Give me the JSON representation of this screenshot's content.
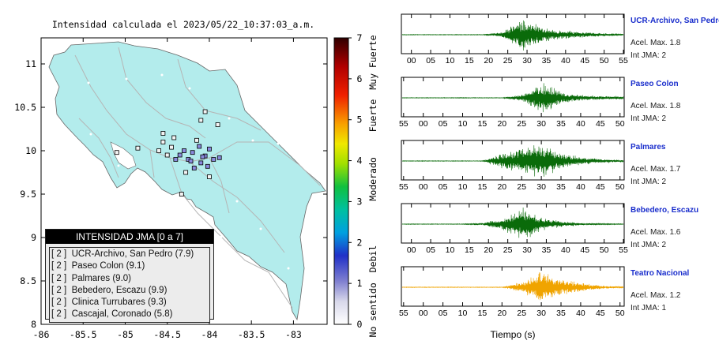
{
  "map": {
    "title": "Intensidad calculada el 2023/05/22_10:37:03_a.m.",
    "xticks": [
      "-86",
      "-85.5",
      "-85",
      "-84.5",
      "-84",
      "-83.5",
      "-83"
    ],
    "yticks": [
      "11",
      "10.5",
      "10",
      "9.5",
      "9",
      "8.5",
      "8"
    ],
    "colors": {
      "land": "#b3ecec",
      "ocean": "#ffffff",
      "roads": "#b5b5b5",
      "towns": "#ffffff",
      "station_fill": "#8a8adc"
    }
  },
  "colorbar": {
    "ticks": [
      "0",
      "1",
      "2",
      "3",
      "4",
      "5",
      "6",
      "7"
    ],
    "labels": [
      "No sentido",
      "Debil",
      "Moderado",
      "Fuerte",
      "Muy Fuerte"
    ]
  },
  "legend": {
    "title": "INTENSIDAD JMA [0 a 7]",
    "rows": [
      {
        "intensity": "[ 2 ]",
        "station": "UCR-Archivo, San Pedro (7.9)"
      },
      {
        "intensity": "[ 2 ]",
        "station": "Paseo Colon (9.1)"
      },
      {
        "intensity": "[ 2 ]",
        "station": "Palmares (9.0)"
      },
      {
        "intensity": "[ 2 ]",
        "station": "Bebedero, Escazu (9.9)"
      },
      {
        "intensity": "[ 2 ]",
        "station": "Clinica Turrubares (9.3)"
      },
      {
        "intensity": "[ 2 ]",
        "station": "Cascajal, Coronado (5.8)"
      }
    ]
  },
  "seismograms": {
    "xlabel": "Tiempo (s)",
    "panels": [
      {
        "name": "UCR-Archivo, San Pedro",
        "accel": "Acel. Max. 1.8",
        "jma": "Int JMA: 2",
        "color": "#0a6b0a",
        "ticks": [
          "00",
          "05",
          "10",
          "15",
          "20",
          "25",
          "30",
          "35",
          "40",
          "45",
          "50",
          "55"
        ]
      },
      {
        "name": "Paseo Colon",
        "accel": "Acel. Max. 1.8",
        "jma": "Int JMA: 2",
        "color": "#0a6b0a",
        "ticks": [
          "55",
          "00",
          "05",
          "10",
          "15",
          "20",
          "25",
          "30",
          "35",
          "40",
          "45",
          "50"
        ]
      },
      {
        "name": "Palmares",
        "accel": "Acel. Max. 1.7",
        "jma": "Int JMA: 2",
        "color": "#0a6b0a",
        "ticks": [
          "55",
          "00",
          "05",
          "10",
          "15",
          "20",
          "25",
          "30",
          "35",
          "40",
          "45",
          "50"
        ]
      },
      {
        "name": "Bebedero, Escazu",
        "accel": "Acel. Max. 1.6",
        "jma": "Int JMA: 2",
        "color": "#0a6b0a",
        "ticks": [
          "00",
          "05",
          "10",
          "15",
          "20",
          "25",
          "30",
          "35",
          "40",
          "45",
          "50",
          "55"
        ]
      },
      {
        "name": "Teatro Nacional",
        "accel": "Acel. Max. 1.2",
        "jma": "Int JMA: 1",
        "color": "#f0a400",
        "ticks": [
          "55",
          "00",
          "05",
          "10",
          "15",
          "20",
          "25",
          "30",
          "35",
          "40",
          "45",
          "50"
        ]
      }
    ]
  },
  "chart_data": [
    {
      "type": "scatter",
      "title": "Intensidad calculada el 2023/05/22_10:37:03_a.m.",
      "xlabel": "",
      "ylabel": "",
      "xlim": [
        -86,
        -82.6
      ],
      "ylim": [
        8,
        11.3
      ],
      "series": [
        {
          "x": [
            -84.05,
            -84.08,
            -84.3,
            -84.2,
            -84.25,
            -84.0,
            -84.1,
            -84.45,
            -84.55,
            -84.15,
            -84.35,
            -83.95,
            -84.02,
            -84.12,
            -84.22,
            -84.4,
            -84.5,
            -84.6,
            -84.85,
            -85.1,
            -84.1,
            -84.42,
            -84.55,
            -84.05,
            -83.9,
            -84.18,
            -84.28,
            -84.0,
            -83.88,
            -84.33
          ],
          "y": [
            9.94,
            9.93,
            10.0,
            9.98,
            9.9,
            10.02,
            9.86,
            10.04,
            10.1,
            10.12,
            9.95,
            9.9,
            9.82,
            10.05,
            9.88,
            9.9,
            9.95,
            10.0,
            10.03,
            9.98,
            10.35,
            10.15,
            10.2,
            10.45,
            10.3,
            9.8,
            9.75,
            9.7,
            9.92,
            9.5
          ]
        }
      ]
    },
    {
      "type": "line",
      "title": "UCR-Archivo, San Pedro",
      "x": [
        0,
        5,
        10,
        15,
        20,
        25,
        30,
        35,
        40,
        45,
        50,
        55
      ],
      "values": [
        0,
        0,
        0,
        0,
        0,
        0.15,
        1.0,
        0.4,
        0.25,
        0.15,
        0.08,
        0.05
      ]
    },
    {
      "type": "line",
      "title": "Paseo Colon",
      "x": [
        55,
        0,
        5,
        10,
        15,
        20,
        25,
        30,
        35,
        40,
        45,
        50
      ],
      "values": [
        0,
        0,
        0,
        0,
        0,
        0,
        0.2,
        1.0,
        0.3,
        0.15,
        0.1,
        0.08
      ]
    },
    {
      "type": "line",
      "title": "Palmares",
      "x": [
        55,
        0,
        5,
        10,
        15,
        20,
        25,
        30,
        35,
        40,
        45,
        50
      ],
      "values": [
        0,
        0,
        0,
        0,
        0,
        0.45,
        0.8,
        1.0,
        0.45,
        0.2,
        0.12,
        0.05
      ]
    },
    {
      "type": "line",
      "title": "Bebedero, Escazu",
      "x": [
        0,
        5,
        10,
        15,
        20,
        25,
        30,
        35,
        40,
        45,
        50,
        55
      ],
      "values": [
        0,
        0,
        0,
        0,
        0.05,
        0.35,
        1.0,
        0.35,
        0.15,
        0.05,
        0.02,
        0
      ]
    },
    {
      "type": "line",
      "title": "Teatro Nacional",
      "x": [
        55,
        0,
        5,
        10,
        15,
        20,
        25,
        30,
        35,
        40,
        45,
        50
      ],
      "values": [
        0,
        0,
        0,
        0,
        0,
        0,
        0.35,
        1.0,
        0.45,
        0.25,
        0.08,
        0.03
      ]
    }
  ]
}
